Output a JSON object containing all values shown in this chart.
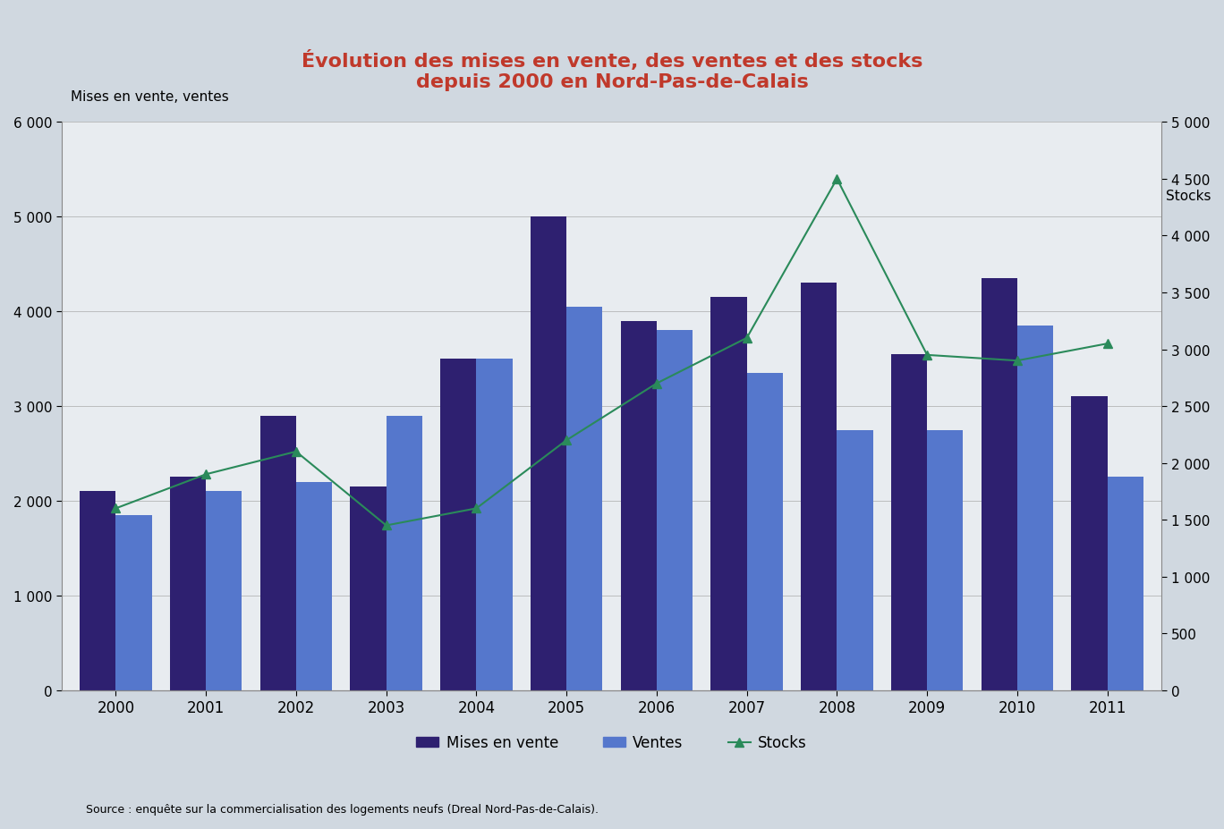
{
  "years": [
    2000,
    2001,
    2002,
    2003,
    2004,
    2005,
    2006,
    2007,
    2008,
    2009,
    2010,
    2011
  ],
  "mises_en_vente": [
    2100,
    2250,
    2900,
    2150,
    3500,
    5000,
    3900,
    4150,
    4300,
    3550,
    4350,
    3100
  ],
  "ventes": [
    1850,
    2100,
    2200,
    2900,
    3500,
    4050,
    3800,
    3350,
    2750,
    2750,
    3850,
    2250
  ],
  "stocks": [
    1600,
    1900,
    2100,
    1450,
    1600,
    2200,
    2700,
    3100,
    4500,
    2950,
    2900,
    3050
  ],
  "bar_color_mises": "#2e2070",
  "bar_color_ventes": "#5577cc",
  "line_color": "#2a8a5a",
  "background_outer": "#d0d8e0",
  "background_plot": "#e8ecf0",
  "title_line1": "Évolution des mises en vente, des ventes et des stocks",
  "title_line2": "depuis 2000 en Nord-Pas-de-Calais",
  "title_color": "#c0392b",
  "ylabel_left": "Mises en vente, ventes",
  "ylabel_right": "Stocks",
  "ylim_left": [
    0,
    6000
  ],
  "ylim_right": [
    0,
    5000
  ],
  "yticks_left": [
    0,
    1000,
    2000,
    3000,
    4000,
    5000,
    6000
  ],
  "yticks_right": [
    0,
    500,
    1000,
    1500,
    2000,
    2500,
    3000,
    3500,
    4000,
    4500,
    5000
  ],
  "source_text": "Source : enquête sur la commercialisation des logements neufs (Dreal Nord-Pas-de-Calais).",
  "legend_mises": "Mises en vente",
  "legend_ventes": "Ventes",
  "legend_stocks": "Stocks"
}
